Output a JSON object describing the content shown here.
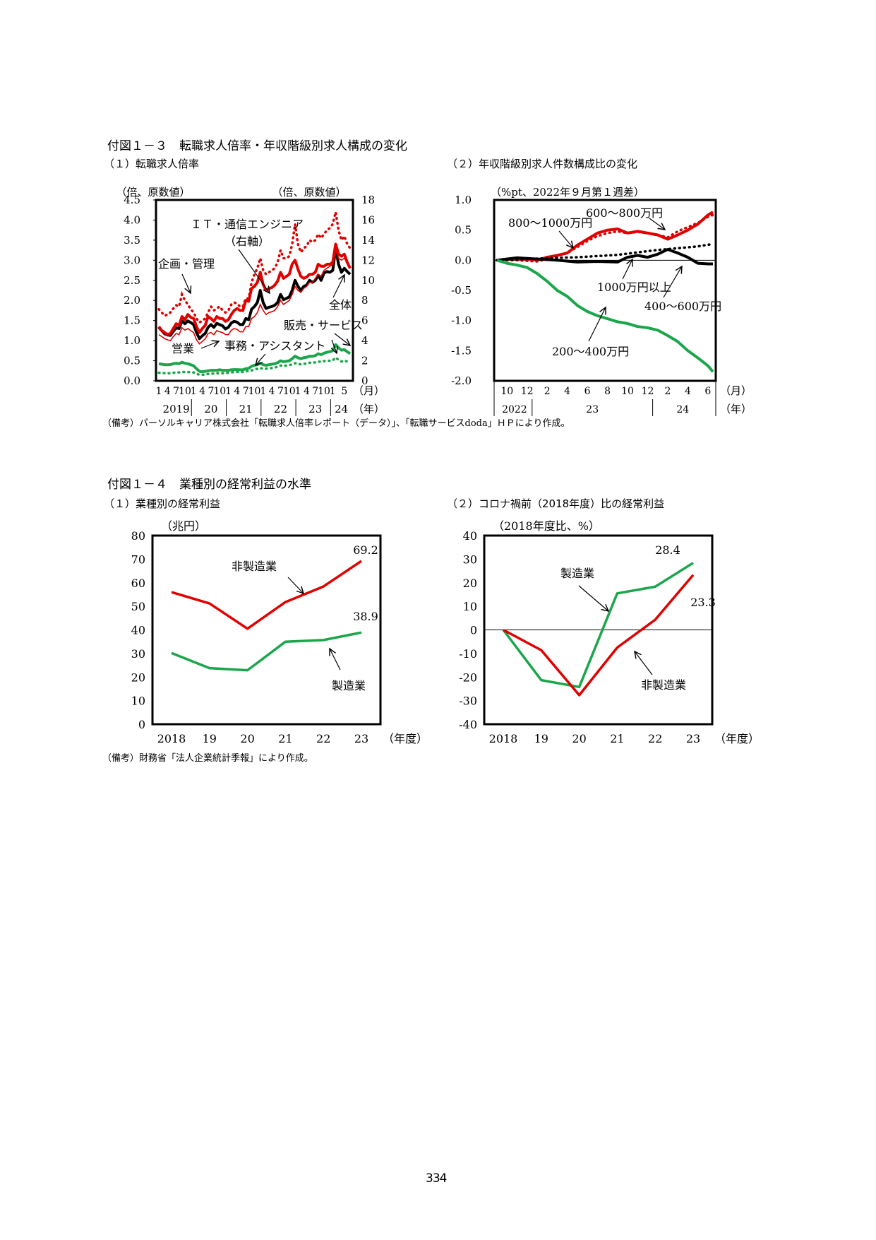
{
  "page_number": "334",
  "fig3": {
    "title": "付図１－３　転職求人倍率・年収階級別求人構成の変化",
    "note": "（備考）パーソルキャリア株式会社「転職求人倍率レポート（データ）」、「転職サービスdoda」ＨＰにより作成。"
  },
  "fig4": {
    "title": "付図１－４　業種別の経常利益の水準",
    "note": "（備考）財務省「法人企業統計季報」により作成。"
  },
  "chart_data": [
    {
      "id": "fig3-1",
      "type": "line",
      "title": "（１）転職求人倍率",
      "left_unit": "（倍、原数値）",
      "right_unit": "（倍、原数値）",
      "yticks_left": [
        "0.0",
        "0.5",
        "1.0",
        "1.5",
        "2.0",
        "2.5",
        "3.0",
        "3.5",
        "4.0",
        "4.5"
      ],
      "yticks_right": [
        "0",
        "2",
        "4",
        "6",
        "8",
        "10",
        "12",
        "14",
        "16",
        "18"
      ],
      "ylim": [
        0,
        4.5
      ],
      "ylim_right": [
        0,
        18
      ],
      "xticks_month": [
        "1",
        "4",
        "7",
        "10",
        "1",
        "4",
        "7",
        "10",
        "1",
        "4",
        "7",
        "10",
        "1",
        "4",
        "7",
        "10",
        "1",
        "4",
        "7",
        "10",
        "1",
        "5"
      ],
      "xticks_year": [
        "2019",
        "20",
        "21",
        "22",
        "23",
        "24"
      ],
      "x_month_unit": "（月）",
      "x_year_unit": "（年）",
      "x_start": "2019-01",
      "annotations": [
        "ＩＴ・通信エンジニア",
        "（右軸）",
        "企画・管理",
        "全体",
        "販売・サービス",
        "営業",
        "事務・アシスタント"
      ],
      "series": [
        {
          "name": "全体",
          "axis": "left",
          "color": "#000000",
          "style": "solid-thick",
          "values": [
            1.33,
            1.25,
            1.17,
            1.14,
            1.13,
            1.23,
            1.32,
            1.3,
            1.49,
            1.42,
            1.49,
            1.45,
            1.4,
            1.2,
            1.05,
            1.12,
            1.18,
            1.33,
            1.4,
            1.33,
            1.43,
            1.4,
            1.37,
            1.29,
            1.33,
            1.44,
            1.48,
            1.46,
            1.4,
            1.4,
            1.55,
            1.52,
            1.78,
            1.85,
            1.95,
            2.25,
            1.95,
            1.8,
            1.83,
            1.85,
            1.88,
            1.95,
            2.15,
            2.02,
            2.05,
            2.09,
            2.25,
            2.5,
            2.35,
            2.25,
            2.35,
            2.38,
            2.5,
            2.45,
            2.5,
            2.63,
            2.5,
            2.68,
            2.72,
            2.7,
            2.75,
            3.3,
            2.9,
            2.7,
            2.8,
            2.72,
            2.65
          ]
        },
        {
          "name": "企画・管理",
          "axis": "left",
          "color": "#e00000",
          "style": "solid-thick",
          "values": [
            1.35,
            1.25,
            1.2,
            1.15,
            1.18,
            1.3,
            1.42,
            1.38,
            1.6,
            1.52,
            1.65,
            1.58,
            1.55,
            1.35,
            1.2,
            1.3,
            1.38,
            1.6,
            1.55,
            1.48,
            1.6,
            1.55,
            1.55,
            1.48,
            1.52,
            1.65,
            1.75,
            1.8,
            1.75,
            1.75,
            2.0,
            1.98,
            2.3,
            2.35,
            2.45,
            2.7,
            2.4,
            2.25,
            2.3,
            2.32,
            2.38,
            2.48,
            2.7,
            2.55,
            2.6,
            2.65,
            2.9,
            3.0,
            2.78,
            2.6,
            2.55,
            2.58,
            2.65,
            2.65,
            2.7,
            2.9,
            2.85,
            2.85,
            2.9,
            2.9,
            2.95,
            3.4,
            3.15,
            3.1,
            3.15,
            2.95,
            2.8
          ]
        },
        {
          "name": "販売・サービス",
          "axis": "left",
          "color": "#e00000",
          "style": "solid-thin",
          "values": [
            1.15,
            1.1,
            1.05,
            1.02,
            1.0,
            1.1,
            1.18,
            1.15,
            1.32,
            1.26,
            1.3,
            1.25,
            1.2,
            1.02,
            0.92,
            0.98,
            1.04,
            1.18,
            1.2,
            1.15,
            1.25,
            1.22,
            1.2,
            1.15,
            1.15,
            1.26,
            1.3,
            1.28,
            1.22,
            1.22,
            1.35,
            1.35,
            1.55,
            1.6,
            1.7,
            1.9,
            1.75,
            1.65,
            1.7,
            1.72,
            1.75,
            1.85,
            2.0,
            1.9,
            1.95,
            2.0,
            2.15,
            2.35,
            2.25,
            2.2,
            2.3,
            2.35,
            2.45,
            2.45,
            2.55,
            2.65,
            2.6,
            2.75,
            2.8,
            2.85,
            2.9,
            3.25,
            3.05,
            3.0,
            3.05,
            2.95,
            2.85
          ]
        },
        {
          "name": "営業",
          "axis": "left",
          "color": "#e00000",
          "style": "dotted",
          "values": [
            1.78,
            1.7,
            1.62,
            1.65,
            1.7,
            1.8,
            1.88,
            1.85,
            2.15,
            2.0,
            1.9,
            1.78,
            1.7,
            1.55,
            1.45,
            1.5,
            1.55,
            1.7,
            1.85,
            1.75,
            1.8,
            1.85,
            1.75,
            1.7,
            1.75,
            1.9,
            1.95,
            1.92,
            1.85,
            1.85,
            2.05,
            2.05,
            2.45,
            2.65,
            2.8,
            3.05,
            2.75,
            2.65,
            2.7,
            2.75,
            2.8,
            2.95,
            3.25,
            3.05,
            3.05,
            3.1,
            3.4,
            3.9,
            3.4,
            3.2,
            3.3,
            3.35,
            3.5,
            3.45,
            3.5,
            3.65,
            3.55,
            3.65,
            3.75,
            3.8,
            3.9,
            4.2,
            3.75,
            3.5,
            3.6,
            3.4,
            3.3
          ]
        },
        {
          "name": "事務・アシスタント",
          "axis": "left",
          "color": "#1aa64a",
          "style": "dotted",
          "values": [
            0.2,
            0.2,
            0.19,
            0.19,
            0.19,
            0.2,
            0.21,
            0.21,
            0.22,
            0.22,
            0.22,
            0.21,
            0.21,
            0.18,
            0.15,
            0.15,
            0.16,
            0.17,
            0.18,
            0.18,
            0.19,
            0.19,
            0.19,
            0.19,
            0.2,
            0.21,
            0.22,
            0.22,
            0.22,
            0.22,
            0.24,
            0.24,
            0.26,
            0.28,
            0.3,
            0.32,
            0.3,
            0.3,
            0.31,
            0.32,
            0.33,
            0.35,
            0.38,
            0.37,
            0.38,
            0.39,
            0.41,
            0.44,
            0.42,
            0.41,
            0.42,
            0.43,
            0.45,
            0.45,
            0.46,
            0.48,
            0.47,
            0.49,
            0.5,
            0.5,
            0.51,
            0.58,
            0.52,
            0.48,
            0.5,
            0.48,
            0.47
          ]
        },
        {
          "name": "ＩＴ・通信エンジニア",
          "axis": "right",
          "color": "#1aa64a",
          "style": "solid-thick",
          "values": [
            1.7,
            1.65,
            1.6,
            1.6,
            1.62,
            1.7,
            1.75,
            1.7,
            1.85,
            1.75,
            1.7,
            1.6,
            1.5,
            1.2,
            0.95,
            0.9,
            0.95,
            1.0,
            1.05,
            1.05,
            1.05,
            1.1,
            1.05,
            1.05,
            1.05,
            1.1,
            1.12,
            1.12,
            1.1,
            1.1,
            1.2,
            1.25,
            1.45,
            1.55,
            1.6,
            1.75,
            1.6,
            1.55,
            1.6,
            1.65,
            1.7,
            1.8,
            2.0,
            1.9,
            1.95,
            2.0,
            2.2,
            2.45,
            2.3,
            2.2,
            2.3,
            2.35,
            2.45,
            2.45,
            2.5,
            2.7,
            2.6,
            2.75,
            2.85,
            2.9,
            3.0,
            3.6,
            3.3,
            3.05,
            3.1,
            2.9,
            2.7
          ]
        }
      ]
    },
    {
      "id": "fig3-2",
      "type": "line",
      "title": "（２）年収階級別求人件数構成比の変化",
      "y_unit": "（%pt、2022年９月第１週差）",
      "yticks": [
        "-2.0",
        "-1.5",
        "-1.0",
        "-0.5",
        "0.0",
        "0.5",
        "1.0"
      ],
      "ylim": [
        -2.0,
        1.0
      ],
      "xticks_month": [
        "10",
        "12",
        "2",
        "4",
        "6",
        "8",
        "10",
        "12",
        "2",
        "4",
        "6"
      ],
      "xticks_year": [
        "2022",
        "23",
        "24"
      ],
      "x_month_unit": "（月）",
      "x_year_unit": "（年）",
      "x_start": "2022-09",
      "x_end": "2024-06",
      "labels": [
        "600～800万円",
        "800～1000万円",
        "1000万円以上",
        "400～600万円",
        "200～400万円"
      ],
      "series": [
        {
          "name": "600～800万円",
          "color": "#e00000",
          "style": "solid-thick",
          "points": [
            [
              0,
              0.0
            ],
            [
              1.5,
              0.03
            ],
            [
              3,
              0.02
            ],
            [
              4,
              0.0
            ],
            [
              5,
              0.05
            ],
            [
              6,
              0.08
            ],
            [
              7,
              0.12
            ],
            [
              8,
              0.25
            ],
            [
              9,
              0.35
            ],
            [
              10,
              0.45
            ],
            [
              11,
              0.5
            ],
            [
              12,
              0.52
            ],
            [
              13,
              0.45
            ],
            [
              14,
              0.48
            ],
            [
              15,
              0.45
            ],
            [
              16,
              0.42
            ],
            [
              17,
              0.35
            ],
            [
              18,
              0.42
            ],
            [
              19,
              0.5
            ],
            [
              20,
              0.6
            ],
            [
              21,
              0.75
            ],
            [
              21.5,
              0.8
            ]
          ]
        },
        {
          "name": "800～1000万円",
          "color": "#e00000",
          "style": "dotted",
          "points": [
            [
              0,
              0.0
            ],
            [
              2,
              0.0
            ],
            [
              4,
              -0.02
            ],
            [
              5,
              0.02
            ],
            [
              6,
              0.08
            ],
            [
              7,
              0.12
            ],
            [
              8,
              0.22
            ],
            [
              9,
              0.32
            ],
            [
              10,
              0.4
            ],
            [
              11,
              0.45
            ],
            [
              12,
              0.48
            ],
            [
              13,
              0.45
            ],
            [
              14,
              0.47
            ],
            [
              15,
              0.45
            ],
            [
              16,
              0.42
            ],
            [
              17,
              0.38
            ],
            [
              18,
              0.48
            ],
            [
              19,
              0.55
            ],
            [
              20,
              0.62
            ],
            [
              21,
              0.72
            ],
            [
              21.5,
              0.75
            ]
          ]
        },
        {
          "name": "1000万円以上",
          "color": "#000000",
          "style": "dotted",
          "points": [
            [
              0,
              0.0
            ],
            [
              3,
              0.02
            ],
            [
              6,
              0.04
            ],
            [
              8,
              0.05
            ],
            [
              10,
              0.07
            ],
            [
              12,
              0.09
            ],
            [
              14,
              0.13
            ],
            [
              16,
              0.17
            ],
            [
              18,
              0.2
            ],
            [
              20,
              0.23
            ],
            [
              21.5,
              0.27
            ]
          ]
        },
        {
          "name": "400～600万円",
          "color": "#000000",
          "style": "solid-thick",
          "points": [
            [
              0,
              0.0
            ],
            [
              2,
              0.04
            ],
            [
              3,
              0.03
            ],
            [
              4,
              0.02
            ],
            [
              6,
              0.0
            ],
            [
              8,
              -0.03
            ],
            [
              10,
              -0.02
            ],
            [
              12,
              -0.03
            ],
            [
              13,
              0.05
            ],
            [
              14,
              0.08
            ],
            [
              15,
              0.05
            ],
            [
              16,
              0.1
            ],
            [
              17,
              0.18
            ],
            [
              18,
              0.12
            ],
            [
              19,
              0.05
            ],
            [
              20,
              -0.05
            ],
            [
              21,
              -0.06
            ],
            [
              21.5,
              -0.06
            ]
          ]
        },
        {
          "name": "200～400万円",
          "color": "#1aa64a",
          "style": "solid-thick",
          "points": [
            [
              0,
              0.0
            ],
            [
              1,
              -0.05
            ],
            [
              2,
              -0.08
            ],
            [
              3,
              -0.12
            ],
            [
              4,
              -0.22
            ],
            [
              5,
              -0.35
            ],
            [
              6,
              -0.5
            ],
            [
              7,
              -0.6
            ],
            [
              8,
              -0.75
            ],
            [
              9,
              -0.85
            ],
            [
              10,
              -0.92
            ],
            [
              11,
              -0.97
            ],
            [
              12,
              -1.02
            ],
            [
              13,
              -1.05
            ],
            [
              14,
              -1.1
            ],
            [
              15,
              -1.12
            ],
            [
              16,
              -1.16
            ],
            [
              17,
              -1.25
            ],
            [
              18,
              -1.35
            ],
            [
              19,
              -1.5
            ],
            [
              20,
              -1.62
            ],
            [
              21,
              -1.75
            ],
            [
              21.5,
              -1.85
            ]
          ]
        }
      ]
    },
    {
      "id": "fig4-1",
      "type": "line",
      "title": "（１）業種別の経常利益",
      "y_unit": "（兆円）",
      "yticks": [
        "0",
        "10",
        "20",
        "30",
        "40",
        "50",
        "60",
        "70",
        "80"
      ],
      "ylim": [
        0,
        80
      ],
      "categories": [
        "2018",
        "19",
        "20",
        "21",
        "22",
        "23"
      ],
      "x_unit": "（年度）",
      "series": [
        {
          "name": "非製造業",
          "color": "#e00000",
          "values": [
            56.0,
            51.2,
            40.5,
            51.8,
            58.4,
            69.2
          ],
          "end_label": "69.2"
        },
        {
          "name": "製造業",
          "color": "#1aa64a",
          "values": [
            30.2,
            23.8,
            22.9,
            35.0,
            35.7,
            38.9
          ],
          "end_label": "38.9"
        }
      ]
    },
    {
      "id": "fig4-2",
      "type": "line",
      "title": "（２）コロナ禍前（2018年度）比の経常利益",
      "y_unit": "（2018年度比、%）",
      "yticks": [
        "-40",
        "-30",
        "-20",
        "-10",
        "0",
        "10",
        "20",
        "30",
        "40"
      ],
      "ylim": [
        -40,
        40
      ],
      "categories": [
        "2018",
        "19",
        "20",
        "21",
        "22",
        "23"
      ],
      "x_unit": "（年度）",
      "series": [
        {
          "name": "製造業",
          "color": "#1aa64a",
          "values": [
            0,
            -21.3,
            -24.2,
            15.5,
            18.3,
            28.4
          ],
          "end_label": "28.4"
        },
        {
          "name": "非製造業",
          "color": "#e00000",
          "values": [
            0,
            -8.6,
            -27.7,
            -7.5,
            4.3,
            23.3
          ],
          "end_label": "23.3"
        }
      ]
    }
  ]
}
